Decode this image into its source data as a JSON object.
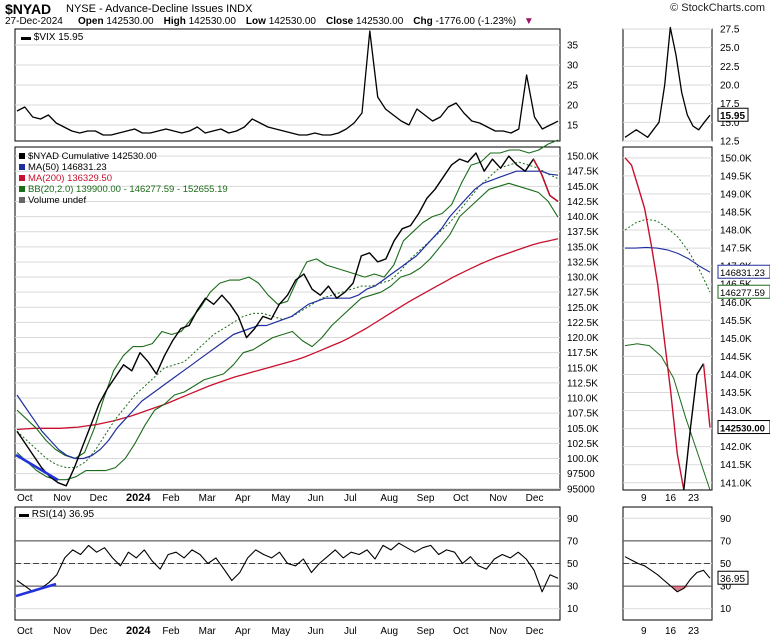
{
  "header": {
    "symbol": "$NYAD",
    "name": "NYSE - Advance-Decline Issues INDX",
    "copyright": "© StockCharts.com",
    "date": "27-Dec-2024",
    "open_label": "Open",
    "open": "142530.00",
    "high_label": "High",
    "high": "142530.00",
    "low_label": "Low",
    "low": "142530.00",
    "close_label": "Close",
    "close": "142530.00",
    "chg_label": "Chg",
    "chg": "-1776.00 (-1.23%)",
    "chg_arrow": "▼"
  },
  "colors": {
    "background": "#ffffff",
    "grid": "#d9d9d9",
    "price": "#000000",
    "down": "#c8102e",
    "ma50": "#1f2f9e",
    "ma200": "#c8102e",
    "bollinger": "#1a6b1a",
    "trend_line": "#2233dd",
    "rsi_fill": "#c8102e"
  },
  "chart_data": [
    {
      "id": "vix-main",
      "type": "line",
      "title": "$VIX 15.95",
      "legend_label": "$VIX 15.95",
      "ylim": [
        11,
        39
      ],
      "y_ticks": [
        "35",
        "30",
        "25",
        "20",
        "15"
      ],
      "y_tick_values": [
        35,
        30,
        25,
        20,
        15
      ],
      "x_labels": [
        "Oct",
        "Nov",
        "Dec",
        "2024",
        "Feb",
        "Mar",
        "Apr",
        "May",
        "Jun",
        "Jul",
        "Aug",
        "Sep",
        "Oct",
        "Nov",
        "Dec"
      ],
      "values": [
        18.5,
        19.5,
        17.0,
        16.5,
        17.5,
        15.5,
        14.5,
        13.5,
        13.0,
        13.5,
        13.5,
        12.5,
        12.5,
        13.0,
        13.5,
        14.0,
        13.0,
        13.0,
        13.5,
        14.0,
        13.5,
        13.0,
        13.5,
        14.5,
        13.0,
        13.5,
        14.0,
        13.0,
        13.5,
        14.5,
        16.5,
        15.5,
        14.5,
        14.0,
        13.5,
        13.0,
        12.5,
        12.5,
        13.0,
        12.5,
        12.5,
        13.0,
        14.0,
        15.5,
        18.0,
        38.5,
        22.0,
        19.0,
        17.5,
        16.0,
        15.0,
        19.0,
        17.5,
        16.0,
        17.0,
        19.5,
        20.5,
        18.0,
        16.0,
        15.5,
        14.5,
        13.5,
        13.5,
        13.0,
        14.0,
        27.5,
        17.0,
        14.0,
        15.0,
        15.95
      ],
      "grid": true
    },
    {
      "id": "vix-zoom",
      "type": "line",
      "ylim": [
        12.5,
        27.5
      ],
      "y_ticks": [
        "27.5",
        "25.0",
        "22.5",
        "20.0",
        "17.5",
        "15.0",
        "12.5"
      ],
      "y_tick_values": [
        27.5,
        25.0,
        22.5,
        20.0,
        17.5,
        15.0,
        12.5
      ],
      "last_value_label": "15.95",
      "values": [
        13.0,
        13.5,
        14.0,
        13.5,
        13.0,
        14.0,
        15.0,
        20.0,
        27.7,
        24.0,
        19.0,
        16.0,
        14.5,
        14.0,
        15.0,
        15.95
      ],
      "grid": true
    },
    {
      "id": "nyad-main",
      "type": "line",
      "legend": [
        "$NYAD Cumulative 142530.00",
        "MA(50) 146831.23",
        "MA(200) 136329.50",
        "BB(20,2.0) 139900.00 - 146277.59 - 152655.19",
        "Volume undef"
      ],
      "ylim": [
        94800,
        151500
      ],
      "y_ticks": [
        "150.0K",
        "147.5K",
        "145.0K",
        "142.5K",
        "140.0K",
        "137.5K",
        "135.0K",
        "132.5K",
        "130.0K",
        "127.5K",
        "125.0K",
        "122.5K",
        "120.0K",
        "117.5K",
        "115.0K",
        "112.5K",
        "110.0K",
        "107.5K",
        "105.0K",
        "102.5K",
        "100.0K",
        "97500",
        "95000"
      ],
      "y_tick_values": [
        150000,
        147500,
        145000,
        142500,
        140000,
        137500,
        135000,
        132500,
        130000,
        127500,
        125000,
        122500,
        120000,
        117500,
        115000,
        112500,
        110000,
        107500,
        105000,
        102500,
        100000,
        97500,
        95000
      ],
      "x_labels": [
        "Oct",
        "Nov",
        "Dec",
        "2024",
        "Feb",
        "Mar",
        "Apr",
        "May",
        "Jun",
        "Jul",
        "Aug",
        "Sep",
        "Oct",
        "Nov",
        "Dec"
      ],
      "series": [
        {
          "key": "price",
          "values": [
            104500,
            102500,
            100500,
            98500,
            97000,
            96000,
            95500,
            98500,
            102000,
            105500,
            109000,
            111500,
            113500,
            115500,
            114500,
            117500,
            116000,
            114000,
            117000,
            119500,
            121500,
            122000,
            124500,
            126500,
            125500,
            127000,
            125500,
            123500,
            120000,
            121500,
            123500,
            123000,
            125500,
            127000,
            129500,
            130500,
            128000,
            127000,
            128500,
            126500,
            127500,
            129000,
            133500,
            134000,
            132500,
            133000,
            136000,
            138000,
            138500,
            140500,
            143000,
            144500,
            146500,
            148500,
            149500,
            149000,
            150500,
            147500,
            149500,
            148000,
            150000,
            148500,
            147500,
            149500,
            147000,
            143500,
            142500
          ]
        },
        {
          "key": "ma50",
          "values": [
            110500,
            108500,
            106500,
            104500,
            103000,
            101500,
            100500,
            100000,
            100000,
            100500,
            101500,
            103000,
            105000,
            106500,
            108000,
            109500,
            110500,
            111500,
            112500,
            113500,
            114500,
            115500,
            116500,
            117500,
            118500,
            119500,
            120500,
            121000,
            121500,
            122000,
            122000,
            122500,
            123000,
            123500,
            124500,
            125500,
            126000,
            126500,
            126500,
            126500,
            126500,
            127000,
            128000,
            128500,
            129500,
            130500,
            131500,
            132500,
            133500,
            135000,
            136500,
            138000,
            140000,
            141500,
            143000,
            144500,
            145500,
            146000,
            146500,
            147000,
            147500,
            147500,
            147500,
            147500,
            147000,
            146831.23
          ]
        },
        {
          "key": "ma200",
          "values": [
            104800,
            104900,
            105000,
            105000,
            105000,
            105000,
            105100,
            105200,
            105400,
            105600,
            105900,
            106200,
            106600,
            107000,
            107500,
            108000,
            108500,
            109000,
            109600,
            110200,
            110800,
            111400,
            112000,
            112500,
            113000,
            113500,
            113900,
            114300,
            114700,
            115100,
            115500,
            115900,
            116300,
            116800,
            117400,
            118000,
            118600,
            119200,
            119900,
            120700,
            121500,
            122400,
            123300,
            124200,
            125100,
            126000,
            126800,
            127600,
            128400,
            129200,
            130000,
            130700,
            131400,
            132100,
            132700,
            133300,
            133800,
            134300,
            134800,
            135300,
            135700,
            136000,
            136329.5
          ]
        },
        {
          "key": "bb_upper",
          "values": [
            108000,
            106500,
            105000,
            103000,
            101500,
            100500,
            100000,
            101000,
            105000,
            110000,
            114500,
            117000,
            118500,
            118500,
            119000,
            121000,
            120500,
            121000,
            123000,
            125000,
            127500,
            129000,
            129500,
            129500,
            130000,
            129000,
            127000,
            125500,
            126000,
            129500,
            132500,
            133000,
            132000,
            131500,
            131000,
            130500,
            130000,
            130500,
            130000,
            132000,
            136000,
            137500,
            139000,
            140000,
            140500,
            142000,
            145500,
            148500,
            149000,
            150500,
            150500,
            151000,
            151000,
            150500,
            151000,
            152000,
            152655.19
          ]
        },
        {
          "key": "bb_mid",
          "values": [
            104500,
            103000,
            101500,
            100000,
            99000,
            98500,
            98500,
            99500,
            101500,
            104000,
            106500,
            108500,
            110500,
            112000,
            113500,
            115000,
            115500,
            116000,
            117500,
            119000,
            120500,
            121500,
            122500,
            123500,
            124000,
            124000,
            123500,
            123000,
            123500,
            124500,
            125500,
            126500,
            127000,
            127500,
            128000,
            128500,
            128500,
            129000,
            129500,
            131000,
            133000,
            134500,
            136000,
            137500,
            139000,
            141000,
            143000,
            145000,
            146500,
            148000,
            148500,
            149000,
            148500,
            148000,
            147000,
            146277.59
          ]
        },
        {
          "key": "bb_lower",
          "values": [
            101000,
            99500,
            98000,
            97000,
            96500,
            96500,
            97000,
            98000,
            98000,
            98000,
            98500,
            100000,
            102500,
            105500,
            108000,
            109000,
            110500,
            111000,
            112000,
            113000,
            113500,
            114000,
            115500,
            117500,
            118000,
            119000,
            120000,
            120500,
            121000,
            119500,
            118500,
            120000,
            122000,
            123500,
            125000,
            126500,
            127000,
            127500,
            128500,
            130000,
            130500,
            131500,
            133000,
            135000,
            137000,
            140000,
            141500,
            143000,
            144500,
            145000,
            145500,
            145000,
            144500,
            144000,
            142500,
            139900.0
          ]
        }
      ],
      "grid": true
    },
    {
      "id": "nyad-zoom",
      "type": "line",
      "ylim": [
        140800,
        150300
      ],
      "y_ticks": [
        "150.0K",
        "149.5K",
        "149.0K",
        "148.5K",
        "148.0K",
        "147.5K",
        "147.0K",
        "146.5K",
        "146.0K",
        "145.5K",
        "145.0K",
        "144.5K",
        "144.0K",
        "143.5K",
        "143.0K",
        "142.5K",
        "142.0K",
        "141.5K",
        "141.0K"
      ],
      "y_tick_values": [
        150000,
        149500,
        149000,
        148500,
        148000,
        147500,
        147000,
        146500,
        146000,
        145500,
        145000,
        144500,
        144000,
        143500,
        143000,
        142500,
        142000,
        141500,
        141000
      ],
      "value_tags": [
        "146831.23",
        "146277.59",
        "142530.00"
      ],
      "x_labels": [
        "9",
        "16",
        "23"
      ],
      "series": [
        {
          "key": "price",
          "values": [
            150000,
            149800,
            149200,
            148600,
            147600,
            146500,
            145000,
            143500,
            141800,
            140800,
            142500,
            144000,
            144300,
            142530
          ]
        },
        {
          "key": "ma50",
          "values": [
            147500,
            147500,
            147520,
            147500,
            147450,
            147350,
            147200,
            147000,
            146831.23
          ]
        },
        {
          "key": "bb_upper",
          "values": [
            148000,
            148200,
            148300,
            148250,
            148050,
            147800,
            147400,
            146900,
            146277.59
          ]
        },
        {
          "key": "bb_lower",
          "values": [
            144800,
            144850,
            144800,
            144500,
            143900,
            142800,
            141800,
            140800
          ]
        }
      ],
      "grid": true
    },
    {
      "id": "rsi-main",
      "type": "line",
      "title": "RSI(14) 36.95",
      "legend_label": "RSI(14) 36.95",
      "ylim": [
        0,
        100
      ],
      "y_ticks": [
        "90",
        "70",
        "50",
        "30",
        "10"
      ],
      "y_tick_values": [
        90,
        70,
        50,
        30,
        10
      ],
      "x_labels": [
        "Oct",
        "Nov",
        "Dec",
        "2024",
        "Feb",
        "Mar",
        "Apr",
        "May",
        "Jun",
        "Jul",
        "Aug",
        "Sep",
        "Oct",
        "Nov",
        "Dec"
      ],
      "values": [
        35,
        30,
        25,
        28,
        33,
        40,
        55,
        62,
        58,
        66,
        60,
        64,
        55,
        48,
        60,
        55,
        62,
        52,
        45,
        58,
        60,
        55,
        62,
        58,
        50,
        55,
        45,
        35,
        42,
        55,
        62,
        58,
        55,
        60,
        50,
        48,
        54,
        42,
        50,
        56,
        62,
        55,
        60,
        58,
        62,
        54,
        66,
        62,
        68,
        64,
        60,
        64,
        66,
        58,
        62,
        60,
        50,
        56,
        48,
        45,
        54,
        58,
        55,
        60,
        54,
        44,
        25,
        40,
        36.95
      ],
      "grid": true
    },
    {
      "id": "rsi-zoom",
      "type": "line",
      "ylim": [
        0,
        100
      ],
      "y_ticks": [
        "90",
        "70",
        "50",
        "30",
        "10"
      ],
      "y_tick_values": [
        90,
        70,
        50,
        30,
        10
      ],
      "last_value_label": "36.95",
      "x_labels": [
        "9",
        "16",
        "23"
      ],
      "values": [
        56,
        53,
        50,
        48,
        44,
        40,
        35,
        30,
        25,
        28,
        36,
        42,
        44,
        36.95
      ],
      "grid": true
    }
  ]
}
